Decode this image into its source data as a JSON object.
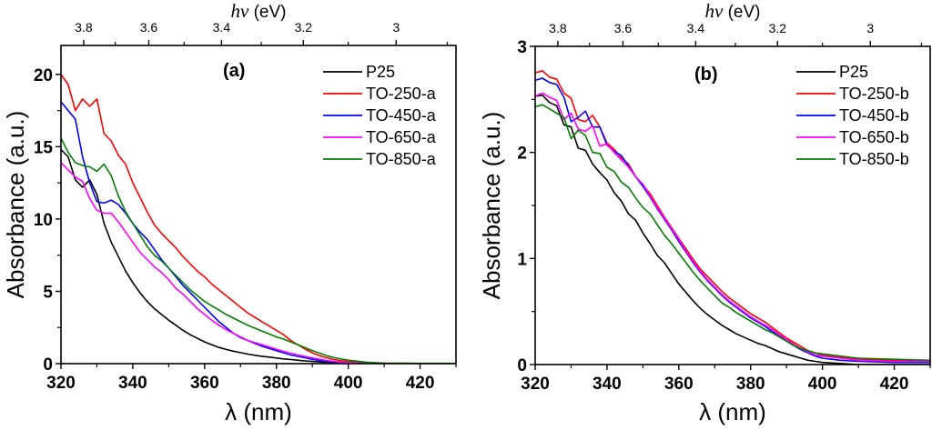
{
  "chart_data": [
    {
      "type": "line",
      "panel_label": "(a)",
      "xlabel": "λ (nm)",
      "ylabel": "Absorbance (a.u.)",
      "top_xlabel_italic": "hν",
      "top_xlabel_unit": " (eV)",
      "xlim": [
        320,
        430
      ],
      "ylim": [
        0,
        22
      ],
      "xticks": [
        320,
        340,
        360,
        380,
        400,
        420
      ],
      "xticks_minor": [
        330,
        350,
        370,
        390,
        410,
        430
      ],
      "yticks": [
        0,
        5,
        10,
        15,
        20
      ],
      "yticks_minor": [
        2.5,
        7.5,
        12.5,
        17.5
      ],
      "top_ticks_eV": [
        "3.8",
        "3.6",
        "3.4",
        "3.2",
        "3"
      ],
      "top_ticks_minor_eV": [
        3.7,
        3.5,
        3.3,
        3.1,
        2.9
      ],
      "grid": false,
      "legend_position": "top-right",
      "x": [
        320,
        322,
        324,
        326,
        328,
        330,
        332,
        334,
        336,
        338,
        340,
        342,
        344,
        346,
        348,
        350,
        352,
        354,
        356,
        358,
        360,
        362,
        364,
        366,
        368,
        370,
        372,
        374,
        376,
        378,
        380,
        382,
        384,
        386,
        388,
        390,
        392,
        394,
        396,
        398,
        400,
        405,
        410,
        420,
        430
      ],
      "series": [
        {
          "name": "P25",
          "color": "#000000",
          "values": [
            14.8,
            14.3,
            12.7,
            12.2,
            12.7,
            11.7,
            9.7,
            8.4,
            7.4,
            6.4,
            5.6,
            4.9,
            4.3,
            3.8,
            3.4,
            3.0,
            2.65,
            2.3,
            2.0,
            1.75,
            1.5,
            1.3,
            1.12,
            0.98,
            0.86,
            0.76,
            0.66,
            0.58,
            0.51,
            0.45,
            0.39,
            0.33,
            0.28,
            0.23,
            0.19,
            0.15,
            0.12,
            0.09,
            0.07,
            0.05,
            0.03,
            0.01,
            0.0,
            0.0,
            0.0
          ]
        },
        {
          "name": "TO-250-a",
          "color": "#ff0000",
          "values": [
            20.0,
            19.3,
            17.5,
            18.3,
            17.8,
            18.3,
            15.9,
            15.4,
            14.4,
            13.8,
            12.5,
            11.5,
            10.5,
            9.6,
            9.0,
            8.5,
            8.0,
            7.4,
            6.9,
            6.4,
            6.0,
            5.5,
            5.1,
            4.7,
            4.3,
            3.9,
            3.5,
            3.2,
            2.9,
            2.6,
            2.3,
            2.0,
            1.6,
            1.3,
            1.0,
            0.75,
            0.55,
            0.4,
            0.28,
            0.2,
            0.14,
            0.06,
            0.03,
            0.01,
            0.01
          ]
        },
        {
          "name": "TO-450-a",
          "color": "#0000ff",
          "values": [
            18.1,
            17.5,
            16.9,
            14.3,
            12.5,
            11.2,
            11.1,
            11.3,
            11.0,
            10.4,
            9.7,
            9.1,
            8.6,
            7.9,
            7.2,
            6.6,
            6.0,
            5.4,
            4.9,
            4.4,
            3.9,
            3.4,
            2.9,
            2.5,
            2.1,
            1.8,
            1.6,
            1.4,
            1.2,
            1.05,
            0.9,
            0.75,
            0.6,
            0.5,
            0.4,
            0.3,
            0.22,
            0.16,
            0.12,
            0.08,
            0.05,
            0.02,
            0.01,
            0.0,
            0.0
          ]
        },
        {
          "name": "TO-650-a",
          "color": "#ff00ff",
          "values": [
            13.9,
            13.4,
            12.9,
            12.6,
            11.4,
            10.6,
            10.4,
            10.4,
            9.8,
            9.1,
            8.4,
            7.7,
            7.2,
            6.7,
            6.3,
            5.8,
            5.2,
            4.8,
            4.3,
            3.8,
            3.4,
            3.0,
            2.65,
            2.35,
            2.1,
            1.85,
            1.6,
            1.45,
            1.3,
            1.15,
            1.0,
            0.85,
            0.72,
            0.6,
            0.5,
            0.4,
            0.3,
            0.22,
            0.16,
            0.11,
            0.07,
            0.03,
            0.01,
            0.0,
            0.0
          ]
        },
        {
          "name": "TO-850-a",
          "color": "#008000",
          "values": [
            15.6,
            14.6,
            13.9,
            13.7,
            13.6,
            13.3,
            13.8,
            13.0,
            11.6,
            10.5,
            9.7,
            8.9,
            8.1,
            7.5,
            7.1,
            6.6,
            6.1,
            5.6,
            5.1,
            4.7,
            4.3,
            4.0,
            3.7,
            3.4,
            3.15,
            2.9,
            2.65,
            2.45,
            2.25,
            2.05,
            1.85,
            1.7,
            1.5,
            1.3,
            1.1,
            0.9,
            0.72,
            0.55,
            0.42,
            0.32,
            0.24,
            0.1,
            0.04,
            0.02,
            0.02
          ]
        }
      ]
    },
    {
      "type": "line",
      "panel_label": "(b)",
      "xlabel": "λ (nm)",
      "ylabel": "Absorbance (a.u.)",
      "top_xlabel_italic": "hν",
      "top_xlabel_unit": " (eV)",
      "xlim": [
        320,
        430
      ],
      "ylim": [
        0,
        3
      ],
      "xticks": [
        320,
        340,
        360,
        380,
        400,
        420
      ],
      "xticks_minor": [
        330,
        350,
        370,
        390,
        410,
        430
      ],
      "yticks": [
        0,
        1,
        2,
        3
      ],
      "yticks_minor": [
        0.5,
        1.5,
        2.5
      ],
      "top_ticks_eV": [
        "3.8",
        "3.6",
        "3.4",
        "3.2",
        "3"
      ],
      "top_ticks_minor_eV": [
        3.7,
        3.5,
        3.3,
        3.1,
        2.9
      ],
      "grid": false,
      "legend_position": "top-right",
      "x": [
        320,
        322,
        324,
        326,
        328,
        330,
        332,
        334,
        336,
        338,
        340,
        342,
        344,
        346,
        348,
        350,
        352,
        354,
        356,
        358,
        360,
        362,
        364,
        366,
        368,
        370,
        372,
        374,
        376,
        378,
        380,
        382,
        384,
        386,
        388,
        390,
        392,
        394,
        396,
        398,
        400,
        405,
        410,
        420,
        430
      ],
      "series": [
        {
          "name": "P25",
          "color": "#000000",
          "values": [
            2.53,
            2.54,
            2.47,
            2.44,
            2.26,
            2.24,
            2.04,
            2.02,
            1.89,
            1.81,
            1.74,
            1.62,
            1.54,
            1.42,
            1.36,
            1.24,
            1.14,
            1.03,
            0.96,
            0.86,
            0.76,
            0.68,
            0.6,
            0.53,
            0.47,
            0.42,
            0.37,
            0.33,
            0.29,
            0.26,
            0.23,
            0.2,
            0.18,
            0.15,
            0.12,
            0.1,
            0.08,
            0.06,
            0.04,
            0.03,
            0.02,
            0.01,
            0.0,
            0.0,
            0.0
          ]
        },
        {
          "name": "TO-250-b",
          "color": "#ff0000",
          "values": [
            2.75,
            2.77,
            2.71,
            2.69,
            2.56,
            2.51,
            2.31,
            2.29,
            2.35,
            2.24,
            2.09,
            2.03,
            1.95,
            1.89,
            1.77,
            1.69,
            1.61,
            1.5,
            1.39,
            1.29,
            1.19,
            1.09,
            0.99,
            0.9,
            0.83,
            0.76,
            0.69,
            0.63,
            0.58,
            0.53,
            0.48,
            0.44,
            0.4,
            0.35,
            0.3,
            0.25,
            0.21,
            0.17,
            0.13,
            0.11,
            0.09,
            0.07,
            0.05,
            0.04,
            0.04
          ]
        },
        {
          "name": "TO-450-b",
          "color": "#0000ff",
          "values": [
            2.68,
            2.7,
            2.66,
            2.64,
            2.52,
            2.29,
            2.33,
            2.39,
            2.24,
            2.24,
            2.07,
            2.01,
            1.97,
            1.87,
            1.77,
            1.68,
            1.58,
            1.47,
            1.37,
            1.27,
            1.16,
            1.06,
            0.96,
            0.87,
            0.79,
            0.72,
            0.65,
            0.59,
            0.54,
            0.49,
            0.44,
            0.4,
            0.36,
            0.31,
            0.27,
            0.22,
            0.18,
            0.14,
            0.11,
            0.08,
            0.06,
            0.04,
            0.03,
            0.02,
            0.02
          ]
        },
        {
          "name": "TO-650-b",
          "color": "#ff00ff",
          "values": [
            2.53,
            2.56,
            2.52,
            2.49,
            2.31,
            2.37,
            2.22,
            2.2,
            2.25,
            2.06,
            2.08,
            2.0,
            1.93,
            1.86,
            1.77,
            1.7,
            1.59,
            1.48,
            1.38,
            1.28,
            1.18,
            1.07,
            0.97,
            0.88,
            0.8,
            0.73,
            0.66,
            0.6,
            0.55,
            0.5,
            0.45,
            0.41,
            0.37,
            0.33,
            0.28,
            0.24,
            0.19,
            0.15,
            0.12,
            0.09,
            0.08,
            0.06,
            0.04,
            0.03,
            0.03
          ]
        },
        {
          "name": "TO-850-b",
          "color": "#008000",
          "values": [
            2.43,
            2.45,
            2.41,
            2.37,
            2.33,
            2.13,
            2.21,
            2.16,
            2.0,
            1.99,
            1.86,
            1.82,
            1.72,
            1.67,
            1.57,
            1.48,
            1.42,
            1.32,
            1.22,
            1.14,
            1.05,
            0.96,
            0.87,
            0.79,
            0.72,
            0.65,
            0.58,
            0.54,
            0.49,
            0.45,
            0.41,
            0.37,
            0.33,
            0.3,
            0.26,
            0.22,
            0.18,
            0.15,
            0.13,
            0.11,
            0.1,
            0.08,
            0.06,
            0.05,
            0.04
          ]
        }
      ]
    }
  ]
}
